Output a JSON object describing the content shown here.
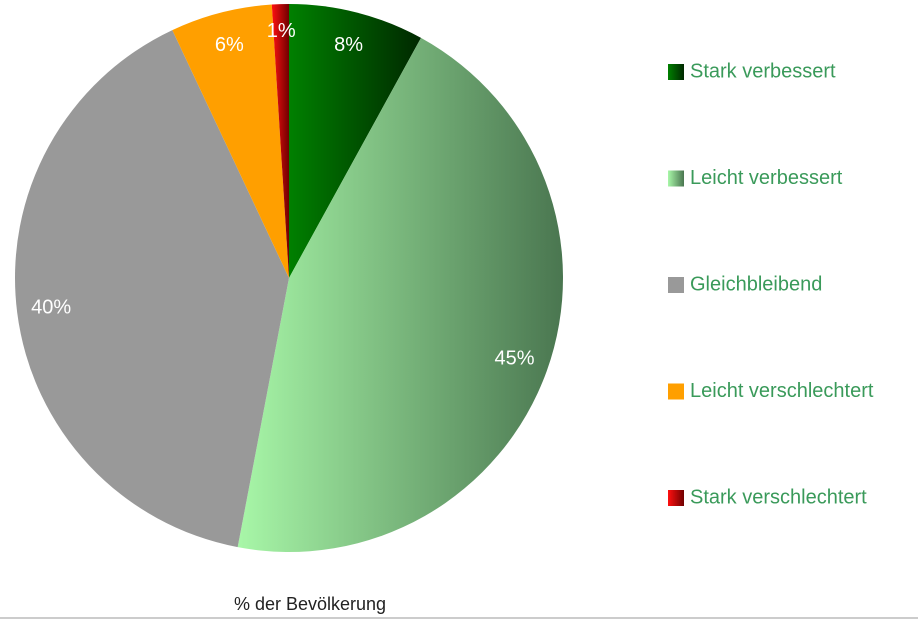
{
  "chart_data": {
    "type": "pie",
    "categories": [
      "Stark verbessert",
      "Leicht verbessert",
      "Gleichbleibend",
      "Leicht verschlechtert",
      "Stark verschlechtert"
    ],
    "values": [
      8,
      45,
      40,
      6,
      1
    ],
    "value_labels": [
      "8%",
      "45%",
      "40%",
      "6%",
      "1%"
    ],
    "colors": [
      [
        "#008000",
        "#002800"
      ],
      [
        "#a8f7a8",
        "#4a7650"
      ],
      [
        "#999999",
        "#999999"
      ],
      [
        "#ff9f00",
        "#ff9f00"
      ],
      [
        "#ff1010",
        "#700000"
      ]
    ],
    "xlabel": "% der Bevölkerung",
    "legend": "right"
  }
}
